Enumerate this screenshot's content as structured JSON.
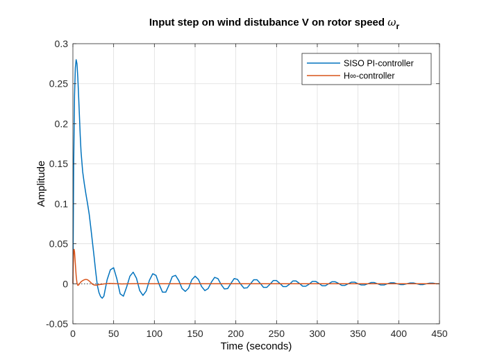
{
  "chart_data": {
    "type": "line",
    "title": "Input step on wind distubance V on rotor speed",
    "title_symbol": "ω",
    "title_subscript": "r",
    "xlabel": "Time (seconds)",
    "ylabel": "Amplitude",
    "xlim": [
      0,
      450
    ],
    "ylim": [
      -0.05,
      0.3
    ],
    "xticks": [
      0,
      50,
      100,
      150,
      200,
      250,
      300,
      350,
      400,
      450
    ],
    "yticks": [
      -0.05,
      0,
      0.05,
      0.1,
      0.15,
      0.2,
      0.25,
      0.3
    ],
    "xtick_labels": [
      "0",
      "50",
      "100",
      "150",
      "200",
      "250",
      "300",
      "350",
      "400",
      "450"
    ],
    "ytick_labels": [
      "-0.05",
      "0",
      "0.05",
      "0.1",
      "0.15",
      "0.2",
      "0.25",
      "0.3"
    ],
    "grid": true,
    "legend_position": "top-right",
    "steady_state_reference": 0,
    "series": [
      {
        "name": "SISO PI-controller",
        "color": "#0072BD",
        "x": [
          0,
          1,
          2,
          3,
          4,
          5,
          6,
          7,
          8,
          9,
          10,
          12,
          14,
          16,
          18,
          20,
          22,
          24,
          26,
          28,
          30,
          32,
          34,
          36,
          38,
          42,
          46,
          50,
          54,
          58,
          62,
          66,
          70,
          74,
          78,
          82,
          86,
          90,
          94,
          98,
          102,
          106,
          110,
          114,
          118,
          122,
          126,
          130,
          134,
          138,
          142,
          146,
          150,
          154,
          158,
          162,
          166,
          170,
          174,
          178,
          182,
          186,
          190,
          194,
          198,
          202,
          206,
          210,
          214,
          218,
          222,
          226,
          230,
          234,
          238,
          242,
          246,
          250,
          254,
          258,
          262,
          266,
          270,
          274,
          278,
          282,
          286,
          290,
          294,
          298,
          302,
          306,
          310,
          314,
          318,
          322,
          326,
          330,
          334,
          338,
          342,
          346,
          350,
          354,
          358,
          362,
          366,
          370,
          374,
          378,
          382,
          386,
          390,
          394,
          398,
          402,
          406,
          410,
          414,
          418,
          422,
          426,
          430,
          434,
          438,
          442,
          446,
          450
        ],
        "values": [
          0.0,
          0.15,
          0.235,
          0.27,
          0.28,
          0.275,
          0.258,
          0.235,
          0.21,
          0.185,
          0.165,
          0.14,
          0.125,
          0.112,
          0.1,
          0.087,
          0.07,
          0.052,
          0.034,
          0.015,
          -0.002,
          -0.011,
          -0.016,
          -0.018,
          -0.0155,
          0.005,
          0.0175,
          0.02,
          0.006,
          -0.0125,
          -0.0155,
          -0.004,
          0.0095,
          0.0145,
          0.007,
          -0.0085,
          -0.0145,
          -0.009,
          0.0045,
          0.0125,
          0.0105,
          -0.001,
          -0.0105,
          -0.0105,
          -0.0015,
          0.009,
          0.0105,
          0.004,
          -0.006,
          -0.0095,
          -0.0055,
          0.005,
          0.0095,
          0.0055,
          -0.0035,
          -0.0085,
          -0.006,
          0.002,
          0.008,
          0.0065,
          -0.001,
          -0.0065,
          -0.006,
          0.0005,
          0.0065,
          0.0055,
          -0.0005,
          -0.0055,
          -0.005,
          0.0,
          0.005,
          0.005,
          0.0005,
          -0.0045,
          -0.0045,
          -0.0005,
          0.004,
          0.004,
          0.0005,
          -0.0035,
          -0.0035,
          -0.0005,
          0.0035,
          0.0035,
          0.0005,
          -0.003,
          -0.003,
          -0.0005,
          0.003,
          0.003,
          0.0005,
          -0.0025,
          -0.0025,
          0.0,
          0.0025,
          0.0025,
          0.0005,
          -0.002,
          -0.002,
          0.0,
          0.002,
          0.002,
          0.0,
          -0.0015,
          -0.0015,
          0.0,
          0.0015,
          0.0015,
          0.0,
          -0.0015,
          -0.0015,
          0.0,
          0.0012,
          0.0012,
          0.0,
          -0.001,
          -0.001,
          0.0,
          0.001,
          0.001,
          0.0,
          -0.001,
          -0.001,
          0.0,
          0.0008,
          0.0008,
          0.0,
          0.0
        ]
      },
      {
        "name": "H∞-controller",
        "color": "#D95319",
        "x": [
          0,
          0.5,
          1,
          1.5,
          2,
          3,
          4,
          5,
          6,
          7,
          8,
          10,
          12,
          14,
          16,
          18,
          20,
          22,
          24,
          26,
          28,
          30,
          33,
          36,
          40,
          45,
          50,
          55,
          60,
          70,
          80,
          90,
          100,
          120,
          150,
          200,
          250,
          300,
          350,
          400,
          450
        ],
        "values": [
          0.0,
          0.025,
          0.042,
          0.043,
          0.04,
          0.025,
          0.01,
          0.001,
          -0.002,
          -0.0015,
          0.0,
          0.0025,
          0.004,
          0.005,
          0.0055,
          0.005,
          0.0035,
          0.0015,
          -0.0005,
          -0.0015,
          -0.0018,
          -0.0015,
          -0.001,
          -0.0005,
          0.0,
          0.0005,
          0.0003,
          0.0,
          -0.0002,
          0.0,
          0.0001,
          0.0,
          0.0,
          0.0,
          0.0,
          0.0,
          0.0,
          0.0,
          0.0,
          0.0,
          0.0
        ]
      }
    ]
  }
}
